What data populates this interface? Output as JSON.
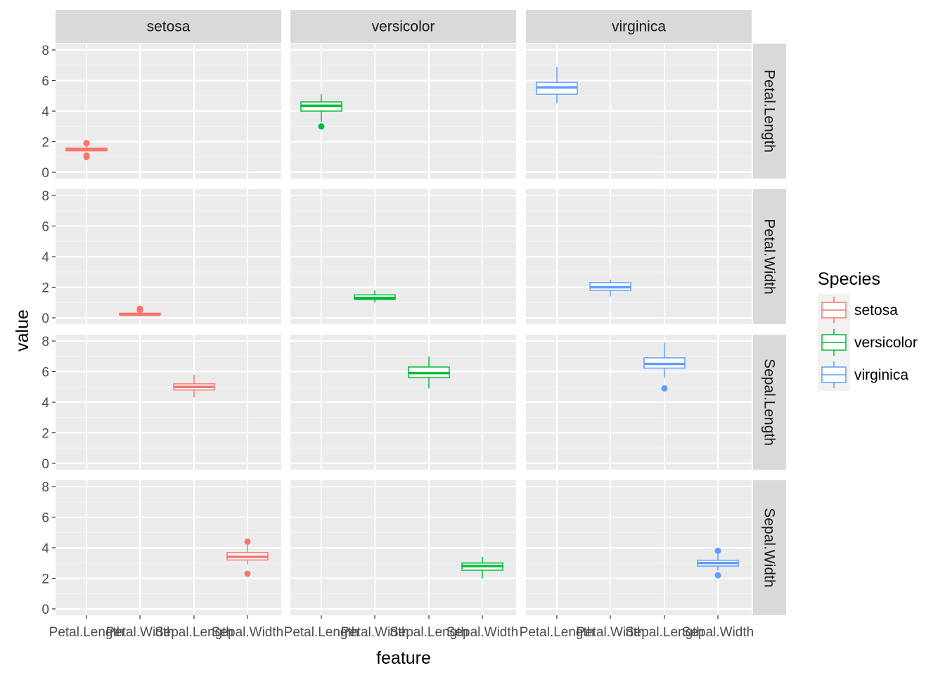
{
  "chart_data": {
    "type": "boxplot",
    "xlabel": "feature",
    "ylabel": "value",
    "ylim": [
      0,
      8
    ],
    "y_ticks": [
      0,
      2,
      4,
      6,
      8
    ],
    "x_categories": [
      "Petal.Length",
      "Petal.Width",
      "Sepal.Length",
      "Sepal.Width"
    ],
    "col_facets": [
      "setosa",
      "versicolor",
      "virginica"
    ],
    "row_facets": [
      "Petal.Length",
      "Petal.Width",
      "Sepal.Length",
      "Sepal.Width"
    ],
    "legend": {
      "title": "Species",
      "position": "right",
      "items": [
        {
          "name": "setosa",
          "color": "#F8766D"
        },
        {
          "name": "versicolor",
          "color": "#00BA38"
        },
        {
          "name": "virginica",
          "color": "#619CFF"
        }
      ]
    },
    "grid": true,
    "boxes": [
      {
        "species": "setosa",
        "feature": "Petal.Length",
        "lower": 1.4,
        "q1": 1.4,
        "median": 1.5,
        "q3": 1.58,
        "upper": 1.7,
        "outliers": [
          1.0,
          1.1,
          1.9,
          1.9
        ]
      },
      {
        "species": "setosa",
        "feature": "Petal.Width",
        "lower": 0.1,
        "q1": 0.2,
        "median": 0.2,
        "q3": 0.3,
        "upper": 0.4,
        "outliers": [
          0.5,
          0.6
        ]
      },
      {
        "species": "setosa",
        "feature": "Sepal.Length",
        "lower": 4.3,
        "q1": 4.8,
        "median": 5.0,
        "q3": 5.2,
        "upper": 5.8,
        "outliers": []
      },
      {
        "species": "setosa",
        "feature": "Sepal.Width",
        "lower": 2.9,
        "q1": 3.2,
        "median": 3.4,
        "q3": 3.68,
        "upper": 4.2,
        "outliers": [
          2.3,
          4.4
        ]
      },
      {
        "species": "versicolor",
        "feature": "Petal.Length",
        "lower": 3.3,
        "q1": 4.0,
        "median": 4.35,
        "q3": 4.6,
        "upper": 5.1,
        "outliers": [
          3.0
        ]
      },
      {
        "species": "versicolor",
        "feature": "Petal.Width",
        "lower": 1.0,
        "q1": 1.2,
        "median": 1.3,
        "q3": 1.5,
        "upper": 1.8,
        "outliers": []
      },
      {
        "species": "versicolor",
        "feature": "Sepal.Length",
        "lower": 4.9,
        "q1": 5.6,
        "median": 5.9,
        "q3": 6.3,
        "upper": 7.0,
        "outliers": []
      },
      {
        "species": "versicolor",
        "feature": "Sepal.Width",
        "lower": 2.0,
        "q1": 2.53,
        "median": 2.8,
        "q3": 3.0,
        "upper": 3.4,
        "outliers": []
      },
      {
        "species": "virginica",
        "feature": "Petal.Length",
        "lower": 4.5,
        "q1": 5.1,
        "median": 5.55,
        "q3": 5.88,
        "upper": 6.9,
        "outliers": []
      },
      {
        "species": "virginica",
        "feature": "Petal.Width",
        "lower": 1.4,
        "q1": 1.8,
        "median": 2.0,
        "q3": 2.3,
        "upper": 2.5,
        "outliers": []
      },
      {
        "species": "virginica",
        "feature": "Sepal.Length",
        "lower": 5.6,
        "q1": 6.23,
        "median": 6.5,
        "q3": 6.9,
        "upper": 7.9,
        "outliers": [
          4.9
        ]
      },
      {
        "species": "virginica",
        "feature": "Sepal.Width",
        "lower": 2.5,
        "q1": 2.8,
        "median": 3.0,
        "q3": 3.18,
        "upper": 3.6,
        "outliers": [
          2.2,
          3.8
        ]
      }
    ]
  }
}
